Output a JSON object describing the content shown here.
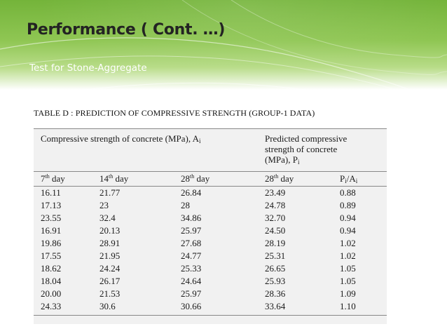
{
  "slide": {
    "title": "Performance ( Cont. …)",
    "subtitle": "Test for Stone-Aggregate",
    "caption": "TABLE D :  PREDICTION OF COMPRESSIVE STRENGTH  (GROUP-1  DATA)"
  },
  "table": {
    "group_header_left": "Compressive strength of concrete (MPa), A",
    "group_header_left_sub": "i",
    "group_header_right_line1": "Predicted compressive",
    "group_header_right_line2": "strength of concrete",
    "group_header_right_line3": "(MPa), P",
    "group_header_right_sub": "i",
    "col1_num": "7",
    "col1_sup": "th",
    "col1_rest": " day",
    "col2_num": "14",
    "col2_sup": "th",
    "col2_rest": " day",
    "col3_num": "28",
    "col3_sup": "th",
    "col3_rest": " day",
    "col4_num": "28",
    "col4_sup": "th",
    "col4_rest": " day",
    "col5_a": "P",
    "col5_a_sub": "i",
    "col5_mid": "/A",
    "col5_b_sub": "i",
    "rows": [
      [
        "16.11",
        "21.77",
        "26.84",
        "23.49",
        "0.88"
      ],
      [
        "17.13",
        "23",
        "28",
        "24.78",
        "0.89"
      ],
      [
        "23.55",
        "32.4",
        "34.86",
        "32.70",
        "0.94"
      ],
      [
        "16.91",
        "20.13",
        "25.97",
        "24.50",
        "0.94"
      ],
      [
        "19.86",
        "28.91",
        "27.68",
        "28.19",
        "1.02"
      ],
      [
        "17.55",
        "21.95",
        "24.77",
        "25.31",
        "1.02"
      ],
      [
        "18.62",
        "24.24",
        "25.33",
        "26.65",
        "1.05"
      ],
      [
        "18.04",
        "26.17",
        "24.64",
        "25.93",
        "1.05"
      ],
      [
        "20.00",
        "21.53",
        "25.97",
        "28.36",
        "1.09"
      ],
      [
        "24.33",
        "30.6",
        "30.66",
        "33.64",
        "1.10"
      ]
    ]
  }
}
